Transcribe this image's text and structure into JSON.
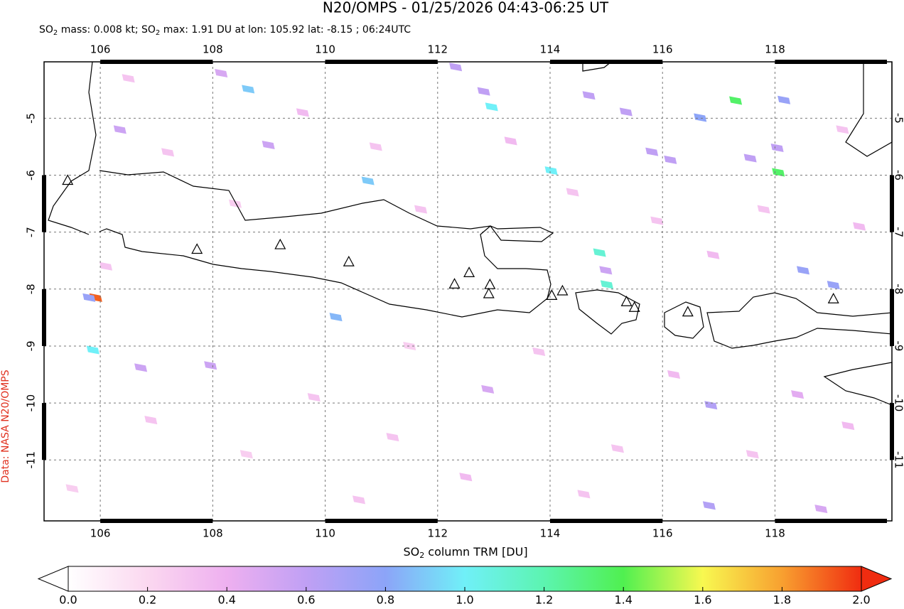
{
  "header": {
    "title": "N20/OMPS - 01/25/2026 04:43-06:25 UT",
    "subtitle": [
      "SO",
      "2",
      " mass: 0.008 kt; SO",
      "2",
      " max: 1.91 DU at lon: 105.92 lat: -8.15 ; 06:24UTC"
    ],
    "credit": "Data: NASA N20/OMPS"
  },
  "map": {
    "xlim": [
      105.0,
      120.08
    ],
    "ylim": [
      -12.07,
      -4.01
    ],
    "xticks": [
      106,
      108,
      110,
      112,
      114,
      116,
      118
    ],
    "yticks": [
      -5,
      -6,
      -7,
      -8,
      -9,
      -10,
      -11
    ],
    "grid": true,
    "volcanoes": [
      [
        105.42,
        -6.1
      ],
      [
        107.72,
        -7.31
      ],
      [
        109.2,
        -7.23
      ],
      [
        110.42,
        -7.53
      ],
      [
        112.3,
        -7.92
      ],
      [
        112.56,
        -7.72
      ],
      [
        112.93,
        -7.93
      ],
      [
        112.91,
        -8.09
      ],
      [
        114.03,
        -8.12
      ],
      [
        114.22,
        -8.04
      ],
      [
        115.36,
        -8.23
      ],
      [
        115.5,
        -8.33
      ],
      [
        116.45,
        -8.41
      ],
      [
        119.04,
        -8.18
      ]
    ],
    "pixels": [
      [
        105.92,
        -8.15,
        1.91
      ],
      [
        105.8,
        -8.15,
        0.75
      ],
      [
        105.87,
        -9.07,
        1.0
      ],
      [
        110.19,
        -8.49,
        0.85
      ],
      [
        108.63,
        -4.49,
        0.9
      ],
      [
        110.76,
        -6.1,
        0.9
      ],
      [
        112.96,
        -4.8,
        1.0
      ],
      [
        114.02,
        -5.92,
        1.0
      ],
      [
        114.88,
        -7.36,
        1.1
      ],
      [
        115.01,
        -7.92,
        1.1
      ],
      [
        117.3,
        -4.69,
        1.35
      ],
      [
        118.06,
        -5.95,
        1.35
      ],
      [
        116.67,
        -4.99,
        0.8
      ],
      [
        118.16,
        -4.68,
        0.75
      ],
      [
        118.5,
        -7.67,
        0.75
      ],
      [
        119.04,
        -7.93,
        0.75
      ],
      [
        112.32,
        -4.1,
        0.6
      ],
      [
        112.82,
        -4.53,
        0.6
      ],
      [
        114.69,
        -4.6,
        0.6
      ],
      [
        115.35,
        -4.89,
        0.6
      ],
      [
        115.81,
        -5.59,
        0.6
      ],
      [
        116.14,
        -5.73,
        0.6
      ],
      [
        117.56,
        -5.7,
        0.6
      ],
      [
        118.04,
        -5.52,
        0.6
      ],
      [
        116.86,
        -10.04,
        0.65
      ],
      [
        116.83,
        -11.8,
        0.65
      ],
      [
        114.99,
        -7.67,
        0.55
      ],
      [
        108.99,
        -5.47,
        0.55
      ],
      [
        106.35,
        -5.2,
        0.55
      ],
      [
        107.96,
        -9.34,
        0.55
      ],
      [
        106.72,
        -9.38,
        0.55
      ],
      [
        112.89,
        -9.76,
        0.5
      ],
      [
        108.15,
        -4.21,
        0.5
      ],
      [
        118.82,
        -11.86,
        0.5
      ],
      [
        118.4,
        -9.85,
        0.45
      ],
      [
        106.5,
        -4.3,
        0.3
      ],
      [
        107.2,
        -5.6,
        0.3
      ],
      [
        108.4,
        -6.5,
        0.25
      ],
      [
        109.6,
        -4.9,
        0.35
      ],
      [
        110.9,
        -5.5,
        0.3
      ],
      [
        111.7,
        -6.6,
        0.3
      ],
      [
        113.3,
        -5.4,
        0.35
      ],
      [
        114.4,
        -6.3,
        0.3
      ],
      [
        115.9,
        -6.8,
        0.3
      ],
      [
        116.9,
        -7.4,
        0.35
      ],
      [
        117.8,
        -6.6,
        0.3
      ],
      [
        119.2,
        -5.2,
        0.3
      ],
      [
        119.5,
        -6.9,
        0.35
      ],
      [
        106.9,
        -10.3,
        0.3
      ],
      [
        108.6,
        -10.9,
        0.25
      ],
      [
        109.8,
        -9.9,
        0.3
      ],
      [
        111.2,
        -10.6,
        0.3
      ],
      [
        112.5,
        -11.3,
        0.35
      ],
      [
        113.8,
        -9.1,
        0.3
      ],
      [
        115.2,
        -10.8,
        0.3
      ],
      [
        116.2,
        -9.5,
        0.35
      ],
      [
        117.6,
        -10.9,
        0.3
      ],
      [
        119.3,
        -10.4,
        0.35
      ],
      [
        105.5,
        -11.5,
        0.25
      ],
      [
        110.6,
        -11.7,
        0.3
      ],
      [
        114.6,
        -11.6,
        0.3
      ],
      [
        106.1,
        -7.6,
        0.3
      ],
      [
        111.5,
        -9.0,
        0.25
      ]
    ]
  },
  "colorbar": {
    "label": [
      "SO",
      "2",
      " column TRM [DU]"
    ],
    "clim": [
      0,
      2.0
    ],
    "colormap": [
      "#ffffff",
      "#fbd8f0",
      "#eeb0f0",
      "#c0a0f4",
      "#8ca4f8",
      "#70f0f8",
      "#5cf4b0",
      "#50f050",
      "#f8f850",
      "#f8a030",
      "#f02c10"
    ],
    "ticks": [
      {
        "value": 0,
        "label": "0.0"
      },
      {
        "value": 0.2,
        "label": "0.2"
      },
      {
        "value": 0.4,
        "label": "0.4"
      },
      {
        "value": 0.6,
        "label": "0.6"
      },
      {
        "value": 0.8,
        "label": "0.8"
      },
      {
        "value": 1.0,
        "label": "1.0"
      },
      {
        "value": 1.2,
        "label": "1.2"
      },
      {
        "value": 1.4,
        "label": "1.4"
      },
      {
        "value": 1.6,
        "label": "1.6"
      },
      {
        "value": 1.8,
        "label": "1.8"
      },
      {
        "value": 2.0,
        "label": "2.0"
      }
    ]
  }
}
